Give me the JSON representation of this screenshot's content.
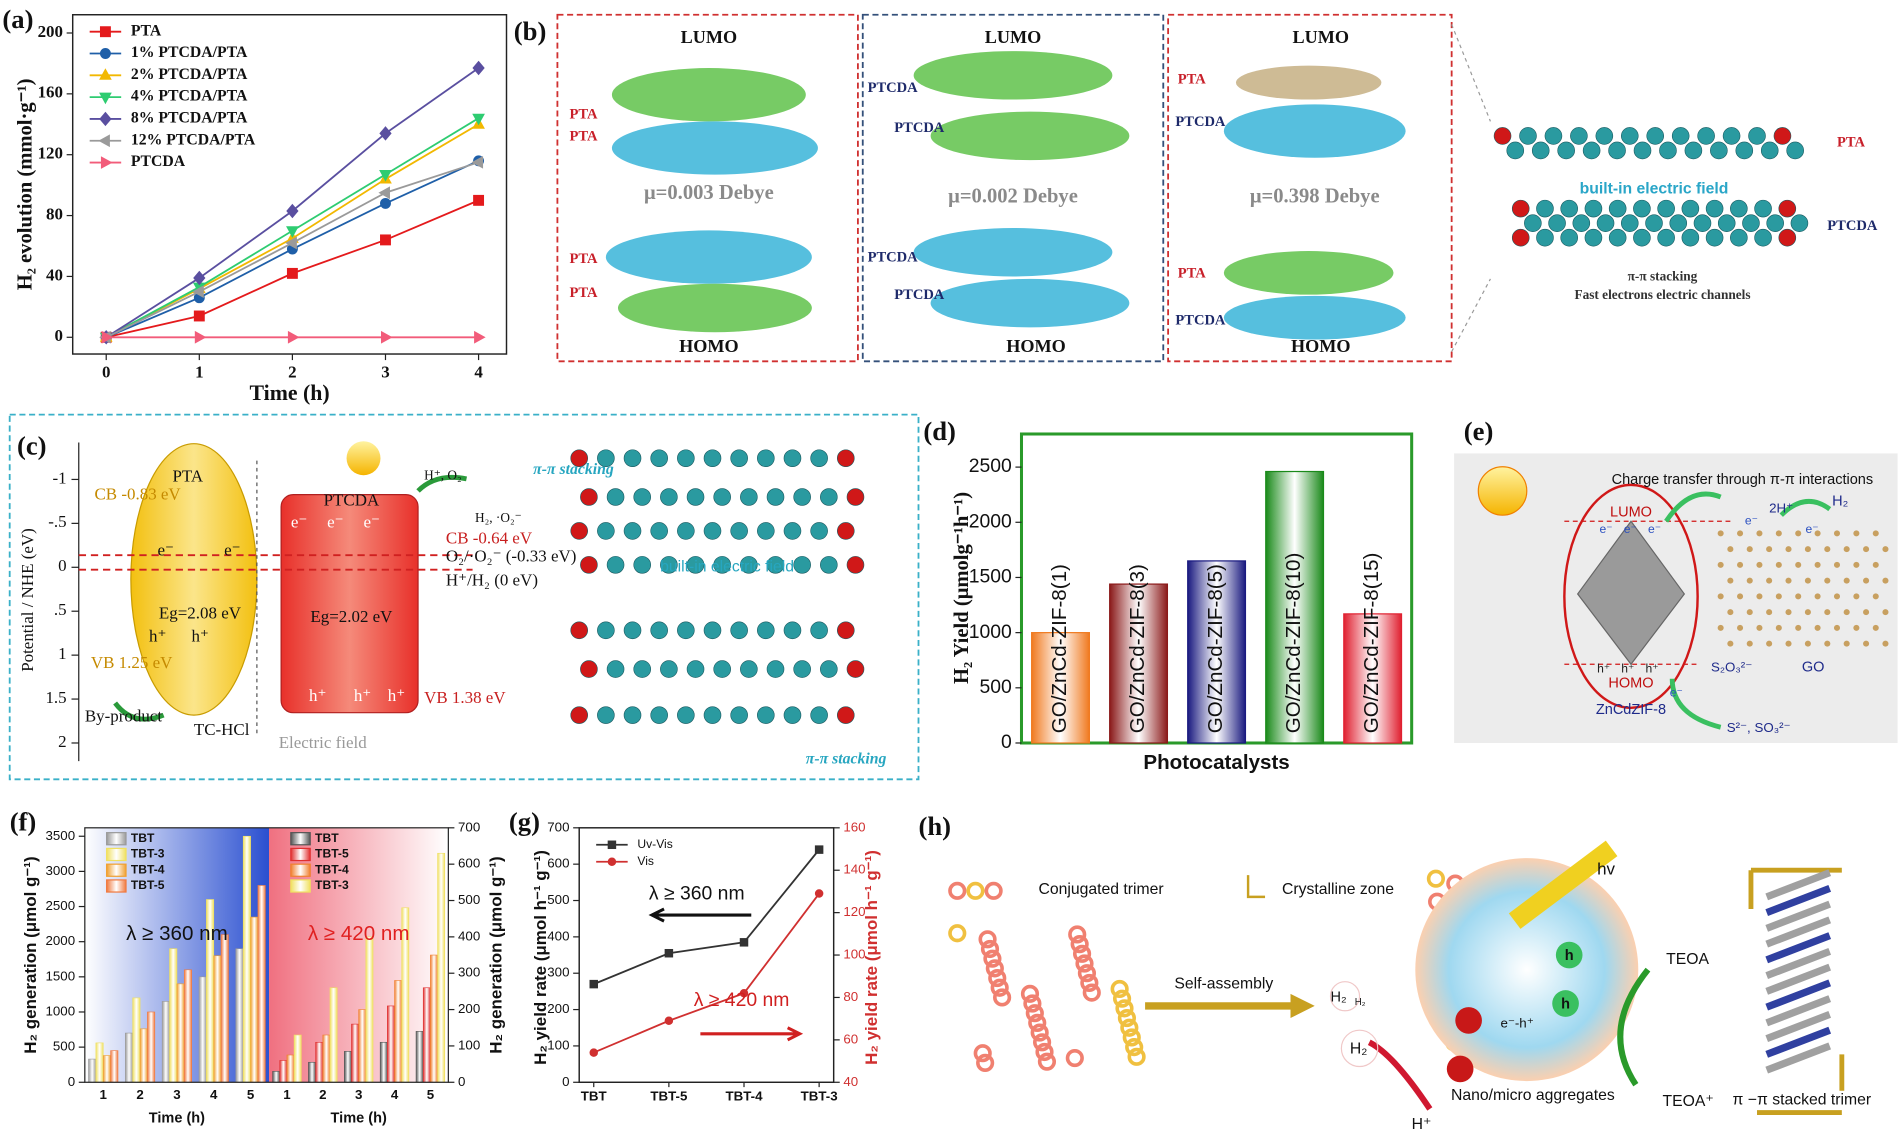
{
  "chart_data": [
    {
      "type": "line",
      "label": "(a)",
      "xlabel": "Time (h)",
      "ylabel": "H₂ evolution (mmol·g⁻¹)",
      "x": [
        0,
        1,
        2,
        3,
        4
      ],
      "xlim": [
        -0.36,
        4.3
      ],
      "xticks": [
        0,
        1,
        2,
        3,
        4
      ],
      "ylim": [
        -11,
        212
      ],
      "yticks": [
        0,
        40,
        80,
        120,
        160,
        200
      ],
      "legend": "upper left",
      "series": [
        {
          "name": "PTA",
          "color": "#e41a1c",
          "marker": "square",
          "values": [
            0,
            14,
            42,
            64,
            90
          ]
        },
        {
          "name": "1% PTCDA/PTA",
          "color": "#1f5fa8",
          "marker": "circle",
          "values": [
            0,
            26,
            58,
            88,
            116
          ]
        },
        {
          "name": "2% PTCDA/PTA",
          "color": "#f2b800",
          "marker": "triangle-up",
          "values": [
            0,
            32,
            65,
            104,
            140
          ]
        },
        {
          "name": "4% PTCDA/PTA",
          "color": "#2ecc71",
          "marker": "triangle-down",
          "values": [
            0,
            33,
            70,
            107,
            144
          ]
        },
        {
          "name": "8% PTCDA/PTA",
          "color": "#5a4fa0",
          "marker": "diamond",
          "values": [
            0,
            39,
            83,
            134,
            177
          ]
        },
        {
          "name": "12% PTCDA/PTA",
          "color": "#9a9a9a",
          "marker": "triangle-left",
          "values": [
            0,
            30,
            62,
            95,
            115
          ]
        },
        {
          "name": "PTCDA",
          "color": "#f25c7a",
          "marker": "triangle-right",
          "values": [
            0,
            0,
            0,
            0,
            0
          ]
        }
      ]
    },
    {
      "type": "bar",
      "label": "(d)",
      "xlabel": "Photocatalysts",
      "ylabel": "H₂ Yield (μmolg⁻¹h⁻¹)",
      "categories": [
        "GO/ZnCd-ZIF-8(1)",
        "GO/ZnCd-ZIF-8(3)",
        "GO/ZnCd-ZIF-8(5)",
        "GO/ZnCd-ZIF-8(10)",
        "GO/ZnCd-ZIF-8(15)"
      ],
      "values": [
        1000,
        1440,
        1650,
        2460,
        1170
      ],
      "colors": [
        "#f07a20",
        "#8b1a1a",
        "#1a1a80",
        "#1a8a1a",
        "#e02030"
      ],
      "ylim": [
        0,
        2800
      ],
      "yticks": [
        0,
        500,
        1000,
        1500,
        2000,
        2500
      ],
      "frame_color": "#2a9a2a"
    },
    {
      "type": "grouped-bar-dual",
      "label": "(f)",
      "ylabel": "H₂ generation (μmol g⁻¹)",
      "y2label": "H₂ generation (μmol g⁻¹)",
      "ylim": [
        0,
        3620
      ],
      "yticks": [
        0,
        500,
        1000,
        1500,
        2000,
        2500,
        3000,
        3500
      ],
      "y2lim": [
        0,
        700
      ],
      "y2ticks": [
        0,
        100,
        200,
        300,
        400,
        500,
        600,
        700
      ],
      "legend": "upper left",
      "groups": [
        {
          "label": "λ ≥ 360 nm",
          "label_color": "#111111",
          "background": "#2a4fd0",
          "xlabel": "Time (h)",
          "categories": [
            "1",
            "2",
            "3",
            "4",
            "5"
          ],
          "series": [
            {
              "name": "TBT",
              "color": "#9a9a9a",
              "values": [
                330,
                700,
                1150,
                1500,
                1900
              ]
            },
            {
              "name": "TBT-3",
              "color": "#f0e060",
              "values": [
                560,
                1200,
                1900,
                2600,
                3500
              ]
            },
            {
              "name": "TBT-4",
              "color": "#f0a030",
              "values": [
                380,
                760,
                1400,
                1800,
                2350
              ]
            },
            {
              "name": "TBT-5",
              "color": "#f07a40",
              "values": [
                450,
                1000,
                1600,
                2100,
                2800
              ]
            }
          ]
        },
        {
          "label": "λ ≥ 420 nm",
          "label_color": "#e02020",
          "background": "#f07080",
          "xlabel": "Time (h)",
          "categories": [
            "1",
            "2",
            "3",
            "4",
            "5"
          ],
          "series": [
            {
              "name": "TBT",
              "color": "#555555",
              "axis": "y2",
              "values": [
                30,
                55,
                85,
                110,
                140
              ]
            },
            {
              "name": "TBT-5",
              "color": "#e03030",
              "axis": "y2",
              "values": [
                60,
                110,
                160,
                210,
                260
              ]
            },
            {
              "name": "TBT-4",
              "color": "#f08030",
              "axis": "y2",
              "values": [
                75,
                130,
                200,
                280,
                350
              ]
            },
            {
              "name": "TBT-3",
              "color": "#f0e060",
              "axis": "y2",
              "values": [
                130,
                260,
                400,
                480,
                630
              ]
            }
          ]
        }
      ]
    },
    {
      "type": "line",
      "label": "(g)",
      "ylabel": "H₂ yield rate (μmol h⁻¹ g⁻¹)",
      "y2label": "H₂ yield rate (μmol h⁻¹ g⁻¹)",
      "categories": [
        "TBT",
        "TBT-5",
        "TBT-4",
        "TBT-3"
      ],
      "ylim": [
        0,
        700
      ],
      "yticks": [
        0,
        100,
        200,
        300,
        400,
        500,
        600,
        700
      ],
      "y2lim": [
        40,
        160
      ],
      "y2ticks": [
        40,
        60,
        80,
        100,
        120,
        140,
        160
      ],
      "y2color": "#d03030",
      "legend": "upper left",
      "series": [
        {
          "name": "Uv-Vis",
          "color": "#333333",
          "marker": "square",
          "values": [
            270,
            355,
            385,
            640
          ]
        },
        {
          "name": "Vis",
          "color": "#d03030",
          "marker": "circle",
          "axis": "y2",
          "values": [
            54,
            69,
            82,
            129
          ]
        }
      ],
      "annotations": [
        "λ ≥ 360 nm",
        "λ ≥ 420 nm"
      ]
    }
  ],
  "panels": {
    "b": {
      "label": "(b)",
      "lumo": "LUMO",
      "homo": "HOMO",
      "pta": "PTA",
      "ptcda": "PTCDA",
      "mu": [
        "μ=0.003 Debye",
        "μ=0.002 Debye",
        "μ=0.398 Debye"
      ],
      "field": "built-in electric field",
      "stacking": "π-π stacking",
      "channels": "Fast electrons electric channels"
    },
    "c": {
      "label": "(c)",
      "axis_label": "Potential / NHE (eV)",
      "ticks": [
        -1,
        {
          "value": -0.5,
          "label": "-.5"
        },
        0,
        {
          "value": 0.5,
          "label": ".5"
        },
        1,
        1.5,
        2
      ],
      "pta": "PTA",
      "ptcda": "PTCDA",
      "cb_pta": "CB -0.83 eV",
      "cb_ptcda": "CB -0.64 eV",
      "eg_pta": "Eg=2.08 eV",
      "eg_ptcda": "Eg=2.02 eV",
      "vb_pta": "VB 1.25 eV",
      "vb_ptcda": "VB 1.38 eV",
      "reactants": "H⁺, O₂",
      "products": "H₂, ·O₂⁻",
      "o2_level": "O₂/·O₂⁻ (-0.33 eV)",
      "h2_level": "H⁺/H₂ (0 eV)",
      "byproduct": "By-product",
      "pollutant": "TC-HCl",
      "electric_field": "Electric field",
      "stacking": "π-π stacking",
      "field": "built-in electric field",
      "electron": "e⁻",
      "hole": "h⁺"
    },
    "e": {
      "label": "(e)",
      "title": "Charge transfer through π-π interactions",
      "lumo": "LUMO",
      "homo": "HOMO",
      "protons": "2H⁺",
      "h2": "H₂",
      "donor": "S₂O₃²⁻",
      "go": "GO",
      "zif": "ZnCdZIF-8",
      "products": "S²⁻, SO₃²⁻",
      "electron": "e⁻",
      "hole": "h⁺"
    },
    "h": {
      "label": "(h)",
      "trimer": "Conjugated trimer",
      "crystalline": "Crystalline zone",
      "assembly": "Self-assembly",
      "h2": "H₂",
      "light": "hv",
      "pair": "e⁻-h⁺",
      "hole": "h",
      "teoa": "TEOA",
      "teoa_ox": "TEOA⁺",
      "proton": "H⁺",
      "aggregates": "Nano/micro aggregates",
      "stacked": "π −π stacked trimer"
    }
  }
}
